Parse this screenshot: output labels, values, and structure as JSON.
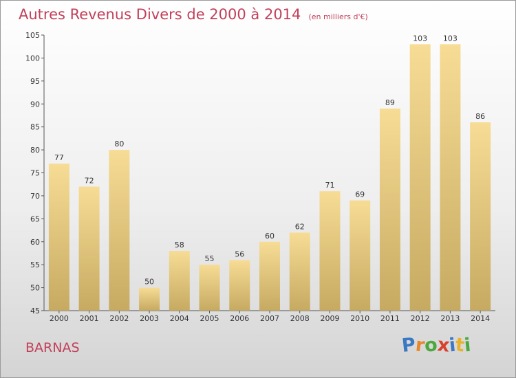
{
  "header": {
    "title": "Autres Revenus Divers de 2000 à 2014",
    "subtitle": "(en milliers d'€)"
  },
  "footer": {
    "commune": "BARNAS",
    "logo_letters": [
      {
        "char": "P",
        "color": "#3a78c3"
      },
      {
        "char": "r",
        "color": "#e8862a"
      },
      {
        "char": "o",
        "color": "#4aa83c"
      },
      {
        "char": "x",
        "color": "#d8412e"
      },
      {
        "char": "i",
        "color": "#3a78c3"
      },
      {
        "char": "t",
        "color": "#e8b22a"
      },
      {
        "char": "i",
        "color": "#4aa83c"
      }
    ]
  },
  "chart_data": {
    "type": "bar",
    "categories": [
      "2000",
      "2001",
      "2002",
      "2003",
      "2004",
      "2005",
      "2006",
      "2007",
      "2008",
      "2009",
      "2010",
      "2011",
      "2012",
      "2013",
      "2014"
    ],
    "values": [
      77,
      72,
      80,
      50,
      58,
      55,
      56,
      60,
      62,
      71,
      69,
      89,
      103,
      103,
      86
    ],
    "data_labels": [
      "77",
      "72",
      "80",
      "50",
      "58",
      "55",
      "56",
      "60",
      "62",
      "71",
      "69",
      "89",
      "103",
      "103",
      "86"
    ],
    "y_ticks": [
      "45",
      "50",
      "55",
      "60",
      "65",
      "70",
      "75",
      "80",
      "85",
      "90",
      "95",
      "100",
      "105"
    ],
    "ylim": [
      45,
      105
    ],
    "grid": false,
    "bar_color": "#f3d48a",
    "bar_color_dark": "#c4a860"
  }
}
